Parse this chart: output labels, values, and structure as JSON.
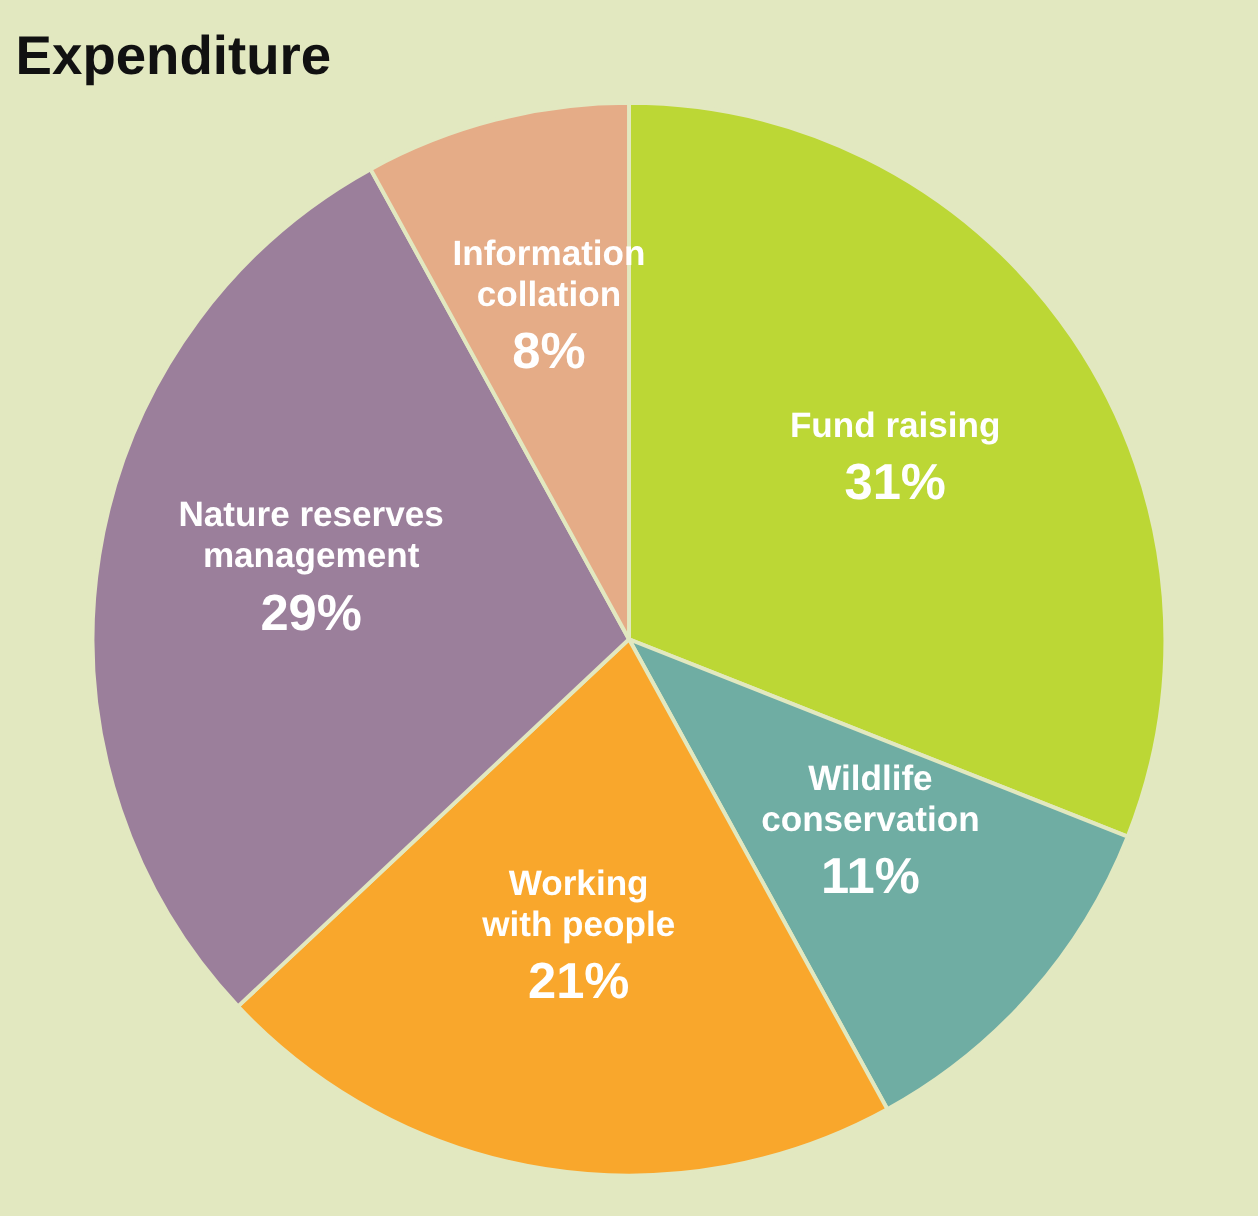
{
  "chart_data": {
    "type": "pie",
    "title": "Expenditure",
    "categories": [
      "Fund raising",
      "Wildlife\nconservation",
      "Working\nwith people",
      "Nature reserves\nmanagement",
      "Information\ncollation"
    ],
    "values": [
      31,
      11,
      21,
      29,
      8
    ],
    "value_labels": [
      "31%",
      "11%",
      "21%",
      "29%",
      "8%"
    ],
    "colors": [
      "#bcd735",
      "#6fada3",
      "#f9a72c",
      "#9b7f9b",
      "#e5ac87"
    ],
    "legend": false
  }
}
